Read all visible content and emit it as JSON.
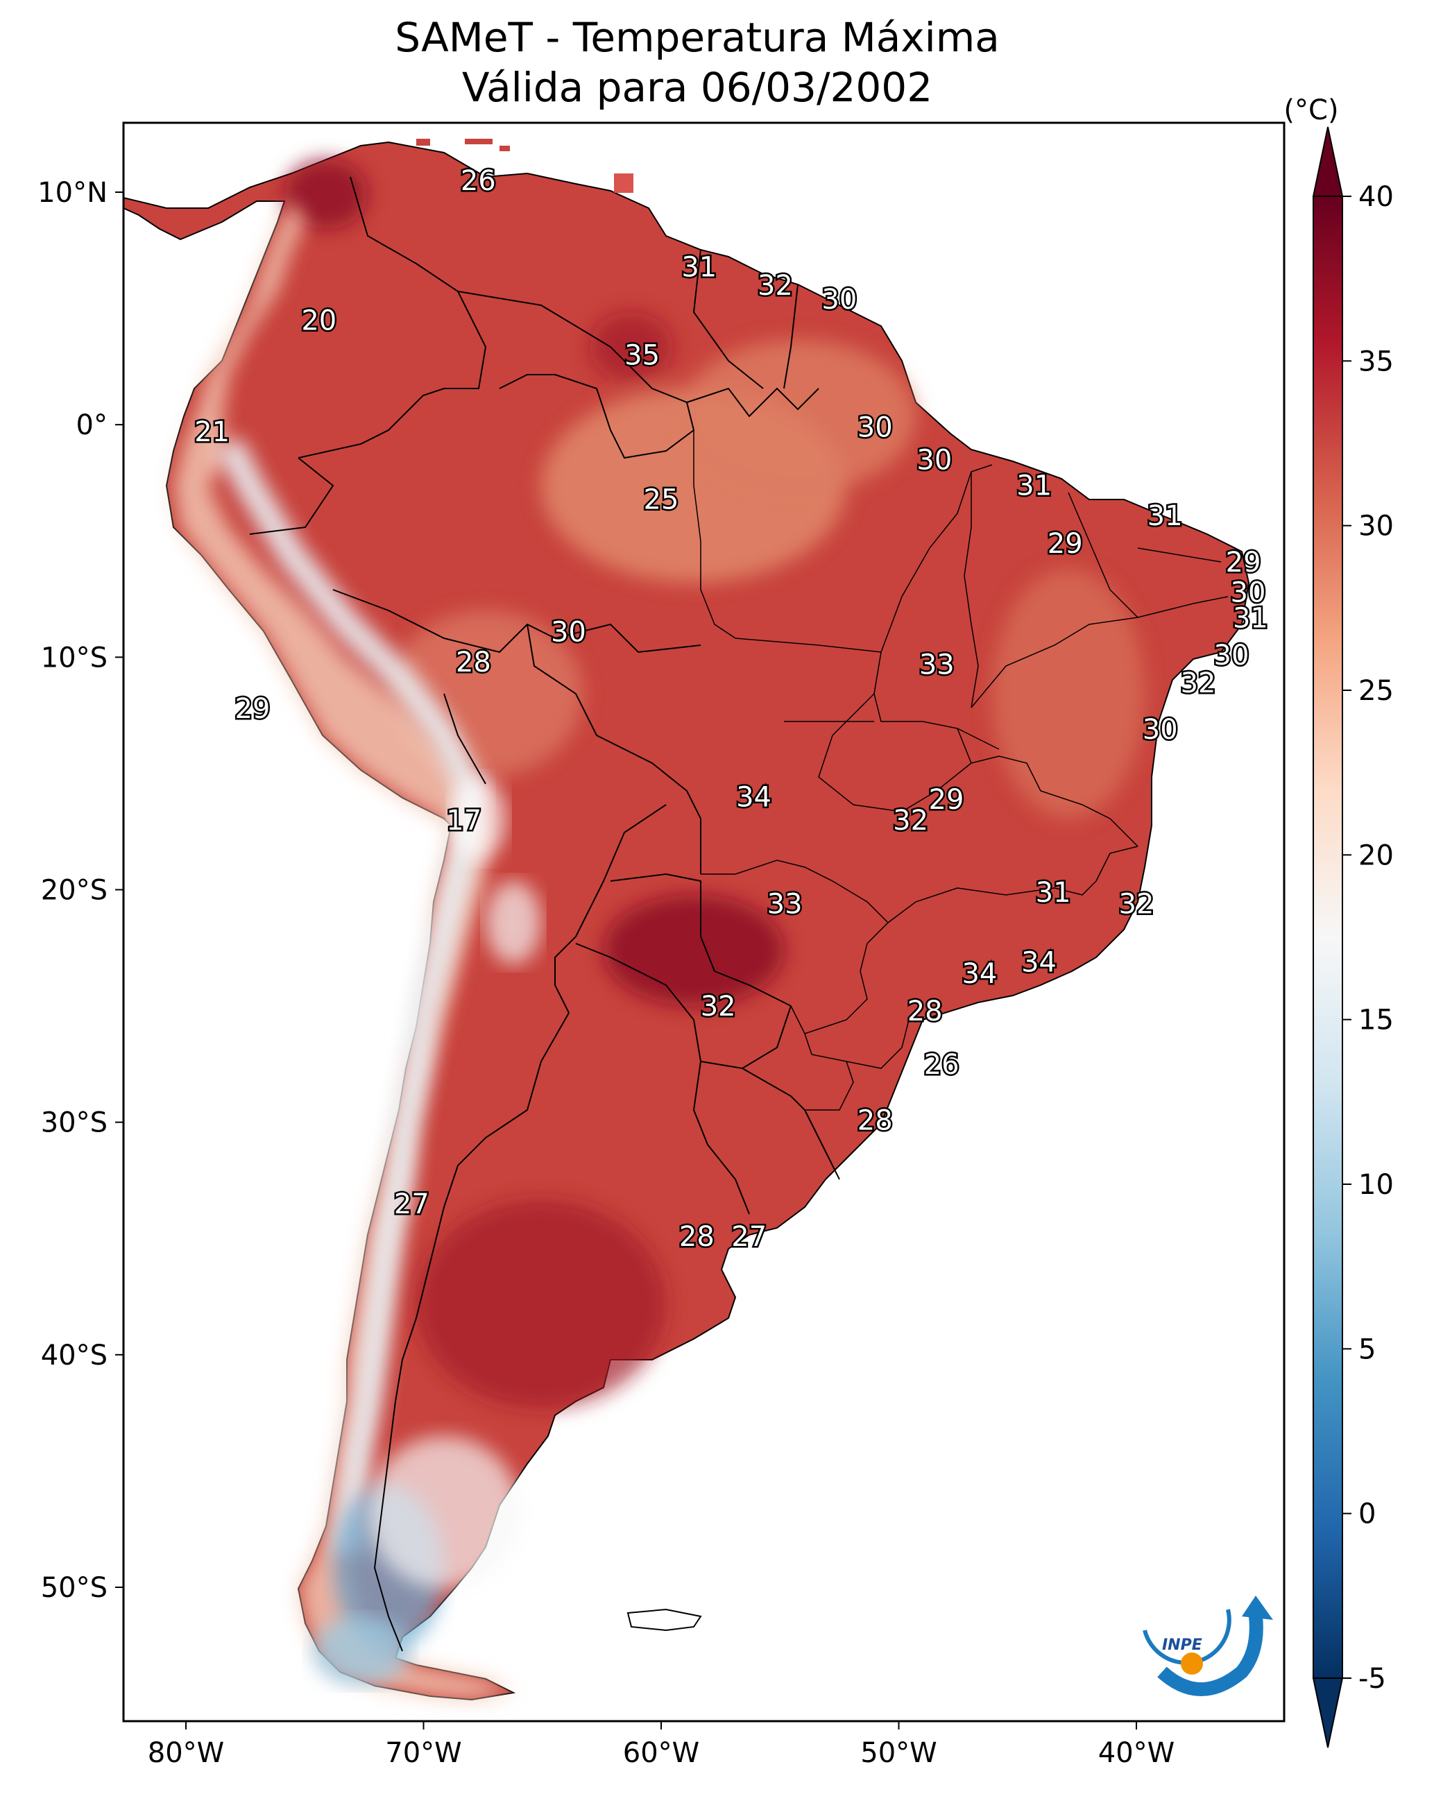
{
  "title": {
    "line1": "SAMeT - Temperatura Máxima",
    "line2": "Válida para 06/03/2002"
  },
  "colorbar": {
    "unit": "(°C)",
    "ticks": [
      "40",
      "35",
      "30",
      "25",
      "20",
      "15",
      "10",
      "5",
      "0",
      "-5"
    ],
    "vmin": -5,
    "vmax": 40,
    "colors": [
      "#053061",
      "#2166ac",
      "#4393c3",
      "#92c5de",
      "#d1e5f0",
      "#f7f7f7",
      "#fddbc7",
      "#f4a582",
      "#d6604d",
      "#b2182b",
      "#67001f"
    ]
  },
  "axes": {
    "lon_ticks": [
      "80°W",
      "70°W",
      "60°W",
      "50°W",
      "40°W"
    ],
    "lat_ticks": [
      "10°N",
      "0°",
      "10°S",
      "20°S",
      "30°S",
      "40°S",
      "50°S"
    ]
  },
  "labels": [
    {
      "text": "26",
      "lon": -67.7,
      "lat": 10.5
    },
    {
      "text": "20",
      "lon": -74.4,
      "lat": 4.5
    },
    {
      "text": "21",
      "lon": -78.9,
      "lat": -0.3
    },
    {
      "text": "31",
      "lon": -58.4,
      "lat": 6.8
    },
    {
      "text": "32",
      "lon": -55.2,
      "lat": 6.0
    },
    {
      "text": "30",
      "lon": -52.5,
      "lat": 5.4
    },
    {
      "text": "35",
      "lon": -60.8,
      "lat": 3.0
    },
    {
      "text": "25",
      "lon": -60.0,
      "lat": -3.2
    },
    {
      "text": "30",
      "lon": -51.0,
      "lat": -0.1
    },
    {
      "text": "30",
      "lon": -48.5,
      "lat": -1.5
    },
    {
      "text": "31",
      "lon": -44.3,
      "lat": -2.6
    },
    {
      "text": "31",
      "lon": -38.8,
      "lat": -3.9
    },
    {
      "text": "29",
      "lon": -43.0,
      "lat": -5.1
    },
    {
      "text": "29",
      "lon": -35.5,
      "lat": -5.9
    },
    {
      "text": "30",
      "lon": -35.3,
      "lat": -7.2
    },
    {
      "text": "31",
      "lon": -35.2,
      "lat": -8.3
    },
    {
      "text": "30",
      "lon": -36.0,
      "lat": -9.9
    },
    {
      "text": "32",
      "lon": -37.4,
      "lat": -11.1
    },
    {
      "text": "30",
      "lon": -39.0,
      "lat": -13.1
    },
    {
      "text": "33",
      "lon": -48.4,
      "lat": -10.3
    },
    {
      "text": "30",
      "lon": -63.9,
      "lat": -8.9
    },
    {
      "text": "28",
      "lon": -67.9,
      "lat": -10.2
    },
    {
      "text": "29",
      "lon": -77.2,
      "lat": -12.2
    },
    {
      "text": "34",
      "lon": -56.1,
      "lat": -16.0
    },
    {
      "text": "29",
      "lon": -48.0,
      "lat": -16.1
    },
    {
      "text": "32",
      "lon": -49.5,
      "lat": -17.0
    },
    {
      "text": "17",
      "lon": -68.3,
      "lat": -17.0
    },
    {
      "text": "31",
      "lon": -43.5,
      "lat": -20.1
    },
    {
      "text": "32",
      "lon": -40.0,
      "lat": -20.6
    },
    {
      "text": "33",
      "lon": -54.8,
      "lat": -20.6
    },
    {
      "text": "34",
      "lon": -44.1,
      "lat": -23.1
    },
    {
      "text": "34",
      "lon": -46.6,
      "lat": -23.6
    },
    {
      "text": "32",
      "lon": -57.6,
      "lat": -25.0
    },
    {
      "text": "28",
      "lon": -48.9,
      "lat": -25.2
    },
    {
      "text": "26",
      "lon": -48.2,
      "lat": -27.5
    },
    {
      "text": "28",
      "lon": -51.0,
      "lat": -29.9
    },
    {
      "text": "27",
      "lon": -70.5,
      "lat": -33.5
    },
    {
      "text": "28",
      "lon": -58.5,
      "lat": -34.9
    },
    {
      "text": "27",
      "lon": -56.3,
      "lat": -34.9
    }
  ]
}
